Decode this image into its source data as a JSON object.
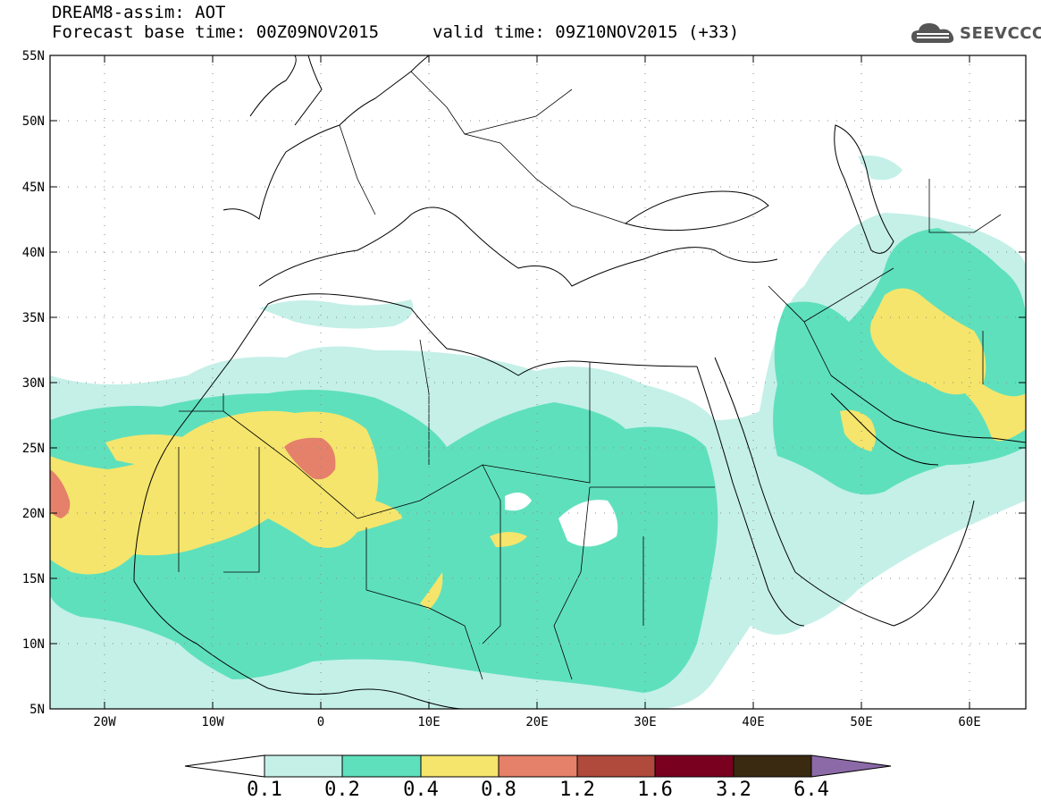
{
  "header": {
    "title_line1": "DREAM8-assim: AOT",
    "title_line2": "Forecast base time: 00Z09NOV2015",
    "valid_time": "valid time: 09Z10NOV2015 (+33)"
  },
  "logo": {
    "text": "SEEVCCC",
    "icon": "cloud-icon"
  },
  "map": {
    "lat_labels": [
      "55N",
      "50N",
      "45N",
      "40N",
      "35N",
      "30N",
      "25N",
      "20N",
      "15N",
      "10N",
      "5N"
    ],
    "lon_labels": [
      "20W",
      "10W",
      "0",
      "10E",
      "20E",
      "30E",
      "40E",
      "50E",
      "60E"
    ],
    "colors": {
      "aot_0_1": "#c4f0e8",
      "aot_0_2": "#5fe0bc",
      "aot_0_4": "#f5e56c",
      "aot_0_8": "#e5806a",
      "aot_1_2": "#b04a3c",
      "aot_1_6": "#7a0020",
      "aot_3_2": "#3b2a12",
      "aot_6_4": "#8c6aa8"
    }
  },
  "colorbar": {
    "labels": [
      "0.1",
      "0.2",
      "0.4",
      "0.8",
      "1.2",
      "1.6",
      "3.2",
      "6.4"
    ]
  }
}
